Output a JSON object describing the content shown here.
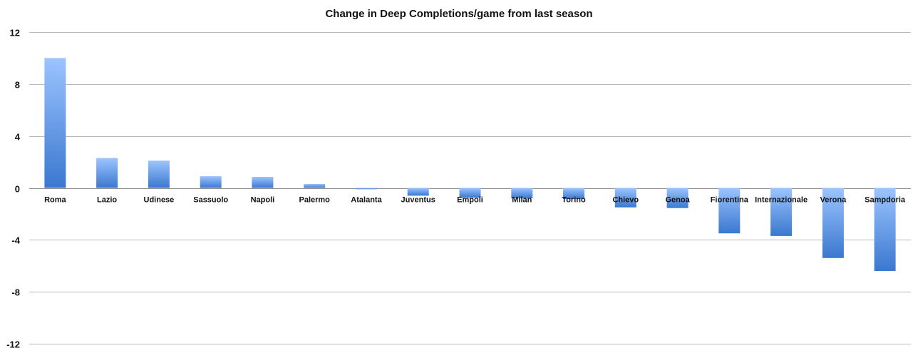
{
  "chart_data": {
    "type": "bar",
    "title": "Change in Deep Completions/game from last season",
    "xlabel": "",
    "ylabel": "",
    "ylim": [
      -12,
      12
    ],
    "yticks": [
      12,
      8,
      4,
      0,
      -4,
      -8,
      -12
    ],
    "grid": true,
    "legend": "none",
    "categories": [
      "Roma",
      "Lazio",
      "Udinese",
      "Sassuolo",
      "Napoli",
      "Palermo",
      "Atalanta",
      "Juventus",
      "Empoli",
      "Milan",
      "Torino",
      "Chievo",
      "Genoa",
      "Fiorentina",
      "Internazionale",
      "Verona",
      "Sampdoria"
    ],
    "values": [
      10.0,
      2.3,
      2.1,
      0.9,
      0.85,
      0.3,
      -0.1,
      -0.6,
      -0.75,
      -0.8,
      -0.85,
      -1.5,
      -1.55,
      -3.5,
      -3.7,
      -5.4,
      -6.4
    ],
    "colors": {
      "bar_light": "#9cc4ff",
      "bar_dark": "#3a78cf",
      "grid": "#b9b9b9",
      "text": "#111111"
    }
  }
}
